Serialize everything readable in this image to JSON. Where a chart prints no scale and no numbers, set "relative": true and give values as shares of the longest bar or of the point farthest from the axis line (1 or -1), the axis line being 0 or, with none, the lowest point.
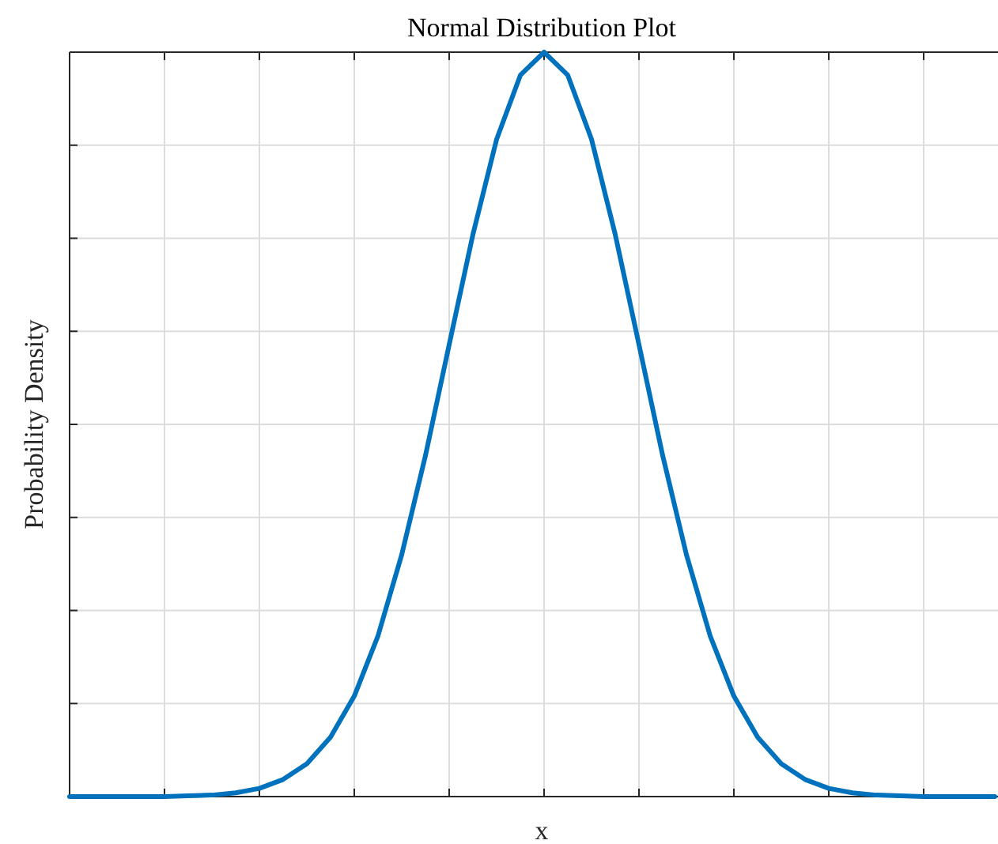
{
  "chart_data": {
    "type": "line",
    "title": "Normal Distribution Plot",
    "xlabel": "x",
    "ylabel": "Probability Density",
    "relative": true,
    "grid": true,
    "categories": [
      null,
      null,
      null,
      null,
      null,
      null,
      null,
      null,
      null,
      null,
      null,
      null,
      null,
      null,
      null,
      null,
      null,
      null,
      null,
      null,
      null,
      null,
      null,
      null,
      null,
      null,
      null,
      null,
      null,
      null,
      null,
      null,
      null,
      null,
      null,
      null,
      null,
      null,
      null,
      null
    ],
    "series": [
      {
        "color": "#0072bd",
        "values": [
          0,
          0,
          0,
          0,
          0,
          0.001,
          0.002,
          0.005,
          0.011,
          0.023,
          0.044,
          0.08,
          0.135,
          0.216,
          0.325,
          0.458,
          0.607,
          0.755,
          0.883,
          0.969,
          1,
          0.969,
          0.883,
          0.755,
          0.607,
          0.458,
          0.325,
          0.216,
          0.135,
          0.08,
          0.044,
          0.023,
          0.011,
          0.005,
          0.002,
          0.001,
          0,
          0,
          0,
          0
        ]
      }
    ]
  }
}
